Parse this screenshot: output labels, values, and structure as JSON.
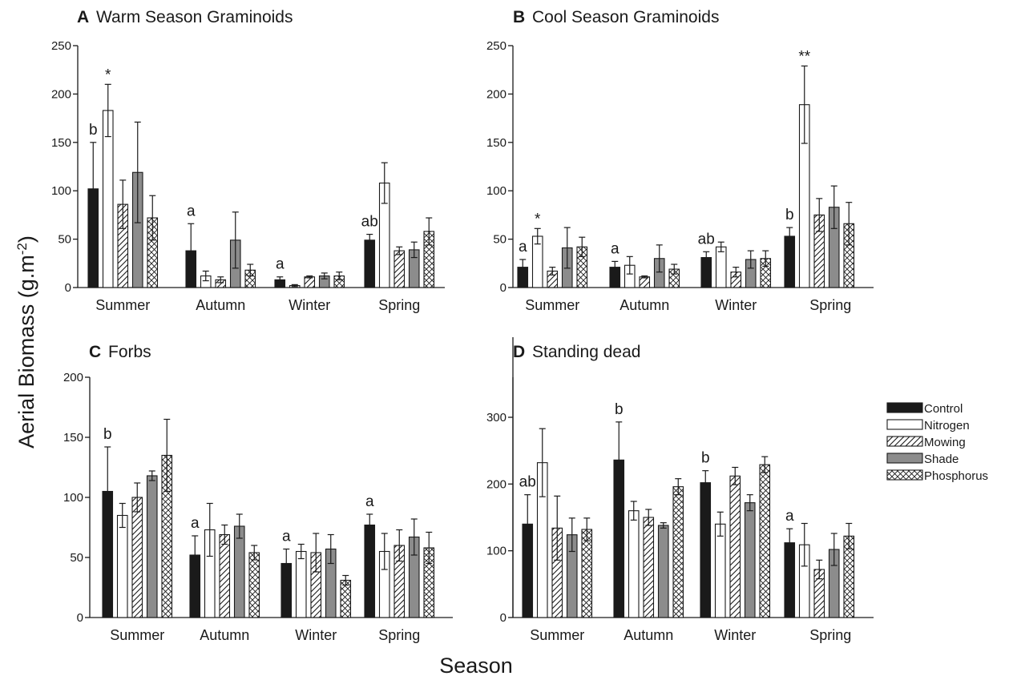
{
  "y_axis_label": "Aerial Biomass (g.m-2)",
  "x_axis_label": "Season",
  "legend": {
    "placement": "right",
    "entries": [
      {
        "name": "Control",
        "pattern": "solid-black"
      },
      {
        "name": "Nitrogen",
        "pattern": "white"
      },
      {
        "name": "Mowing",
        "pattern": "diagonal-hatch"
      },
      {
        "name": "Shade",
        "pattern": "solid-gray"
      },
      {
        "name": "Phosphorus",
        "pattern": "crosshatch"
      }
    ]
  },
  "colors": {
    "control": "#1a1a1a",
    "nitrogen": "#ffffff",
    "shade": "#8c8c8c",
    "stroke": "#1a1a1a"
  },
  "chart_data": [
    {
      "type": "bar",
      "letter": "A",
      "title": "Warm Season Graminoids",
      "categories": [
        "Summer",
        "Autumn",
        "Winter",
        "Spring"
      ],
      "ylim": [
        0,
        250
      ],
      "yticks": [
        0,
        50,
        100,
        150,
        200,
        250
      ],
      "series": [
        {
          "name": "Control",
          "values": [
            102,
            38,
            8,
            49
          ],
          "errors": [
            48,
            28,
            3,
            6
          ]
        },
        {
          "name": "Nitrogen",
          "values": [
            183,
            12,
            2,
            108
          ],
          "errors": [
            27,
            5,
            1,
            21
          ]
        },
        {
          "name": "Mowing",
          "values": [
            86,
            8,
            11,
            38
          ],
          "errors": [
            25,
            3,
            1,
            4
          ]
        },
        {
          "name": "Shade",
          "values": [
            119,
            49,
            12,
            39
          ],
          "errors": [
            52,
            29,
            3,
            8
          ]
        },
        {
          "name": "Phosphorus",
          "values": [
            72,
            18,
            12,
            58
          ],
          "errors": [
            23,
            6,
            4,
            14
          ]
        }
      ],
      "annotations": [
        {
          "text": "b",
          "category": "Summer"
        },
        {
          "text": "*",
          "category": "Summer",
          "series": "Nitrogen"
        },
        {
          "text": "a",
          "category": "Autumn"
        },
        {
          "text": "a",
          "category": "Winter"
        },
        {
          "text": "ab",
          "category": "Spring"
        }
      ]
    },
    {
      "type": "bar",
      "letter": "B",
      "title": "Cool Season Graminoids",
      "categories": [
        "Summer",
        "Autumn",
        "Winter",
        "Spring"
      ],
      "ylim": [
        0,
        250
      ],
      "yticks": [
        0,
        50,
        100,
        150,
        200,
        250
      ],
      "series": [
        {
          "name": "Control",
          "values": [
            21,
            21,
            31,
            53
          ],
          "errors": [
            8,
            6,
            6,
            9
          ]
        },
        {
          "name": "Nitrogen",
          "values": [
            53,
            23,
            42,
            189
          ],
          "errors": [
            8,
            9,
            5,
            40
          ]
        },
        {
          "name": "Mowing",
          "values": [
            17,
            11,
            16,
            75
          ],
          "errors": [
            4,
            1,
            5,
            17
          ]
        },
        {
          "name": "Shade",
          "values": [
            41,
            30,
            29,
            83
          ],
          "errors": [
            21,
            14,
            9,
            22
          ]
        },
        {
          "name": "Phosphorus",
          "values": [
            42,
            19,
            30,
            66
          ],
          "errors": [
            10,
            5,
            8,
            22
          ]
        }
      ],
      "annotations": [
        {
          "text": "a",
          "category": "Summer"
        },
        {
          "text": "*",
          "category": "Summer",
          "series": "Nitrogen"
        },
        {
          "text": "a",
          "category": "Autumn"
        },
        {
          "text": "ab",
          "category": "Winter"
        },
        {
          "text": "b",
          "category": "Spring"
        },
        {
          "text": "**",
          "category": "Spring",
          "series": "Nitrogen"
        }
      ]
    },
    {
      "type": "bar",
      "letter": "C",
      "title": "Forbs",
      "categories": [
        "Summer",
        "Autumn",
        "Winter",
        "Spring"
      ],
      "ylim": [
        0,
        200
      ],
      "yticks": [
        0,
        50,
        100,
        150,
        200
      ],
      "series": [
        {
          "name": "Control",
          "values": [
            105,
            52,
            45,
            77
          ],
          "errors": [
            37,
            16,
            12,
            9
          ]
        },
        {
          "name": "Nitrogen",
          "values": [
            85,
            73,
            55,
            55
          ],
          "errors": [
            10,
            22,
            6,
            15
          ]
        },
        {
          "name": "Mowing",
          "values": [
            100,
            69,
            54,
            60
          ],
          "errors": [
            12,
            8,
            16,
            13
          ]
        },
        {
          "name": "Shade",
          "values": [
            118,
            76,
            57,
            67
          ],
          "errors": [
            4,
            10,
            12,
            15
          ]
        },
        {
          "name": "Phosphorus",
          "values": [
            135,
            54,
            31,
            58
          ],
          "errors": [
            30,
            6,
            4,
            13
          ]
        }
      ],
      "annotations": [
        {
          "text": "b",
          "category": "Summer"
        },
        {
          "text": "a",
          "category": "Autumn"
        },
        {
          "text": "a",
          "category": "Winter"
        },
        {
          "text": "a",
          "category": "Spring"
        }
      ]
    },
    {
      "type": "bar",
      "letter": "D",
      "title": "Standing dead",
      "categories": [
        "Summer",
        "Autumn",
        "Winter",
        "Spring"
      ],
      "ylim": [
        0,
        360
      ],
      "yticks": [
        0,
        100,
        200,
        300
      ],
      "series": [
        {
          "name": "Control",
          "values": [
            140,
            236,
            202,
            112
          ],
          "errors": [
            44,
            57,
            18,
            21
          ]
        },
        {
          "name": "Nitrogen",
          "values": [
            232,
            160,
            140,
            109
          ],
          "errors": [
            51,
            14,
            18,
            32
          ]
        },
        {
          "name": "Mowing",
          "values": [
            134,
            150,
            212,
            72
          ],
          "errors": [
            48,
            12,
            13,
            14
          ]
        },
        {
          "name": "Shade",
          "values": [
            124,
            138,
            172,
            102
          ],
          "errors": [
            25,
            4,
            12,
            24
          ]
        },
        {
          "name": "Phosphorus",
          "values": [
            132,
            196,
            229,
            122
          ],
          "errors": [
            17,
            12,
            12,
            19
          ]
        }
      ],
      "annotations": [
        {
          "text": "ab",
          "category": "Summer"
        },
        {
          "text": "b",
          "category": "Autumn"
        },
        {
          "text": "b",
          "category": "Winter"
        },
        {
          "text": "a",
          "category": "Spring"
        }
      ]
    }
  ]
}
